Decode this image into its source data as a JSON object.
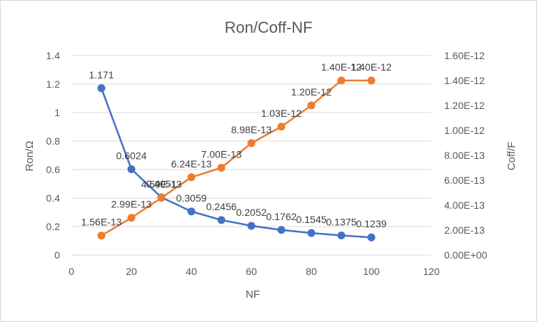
{
  "chart_data": {
    "type": "line",
    "title": "Ron/Coff-NF",
    "xlabel": "NF",
    "ylabel_left": "Ron/Ω",
    "ylabel_right": "Coff/F",
    "xlim": [
      0,
      120
    ],
    "ylim_left": [
      0,
      1.4
    ],
    "ylim_right": [
      0,
      1.6e-12
    ],
    "x_ticks": [
      "0",
      "20",
      "40",
      "60",
      "80",
      "100",
      "120"
    ],
    "y_left_ticks": [
      "0",
      "0.2",
      "0.4",
      "0.6",
      "0.8",
      "1",
      "1.2",
      "1.4"
    ],
    "y_right_ticks": [
      "0.00E+00",
      "2.00E-13",
      "4.00E-13",
      "6.00E-13",
      "8.00E-13",
      "1.00E-12",
      "1.20E-12",
      "1.40E-12",
      "1.60E-12"
    ],
    "grid": "horizontal",
    "legend": "none",
    "x": [
      10,
      20,
      30,
      40,
      50,
      60,
      70,
      80,
      90,
      100
    ],
    "series": [
      {
        "axis": "left",
        "color": "#4472c4",
        "values": [
          1.171,
          0.6024,
          0.4051,
          0.3059,
          0.2456,
          0.2052,
          0.1762,
          0.1545,
          0.1375,
          0.1239
        ],
        "labels": [
          "1.171",
          "0.6024",
          "0.4051",
          "0.3059",
          "0.2456",
          "0.2052",
          "0.1762",
          "0.1545",
          "0.1375",
          "0.1239"
        ]
      },
      {
        "axis": "right",
        "color": "#ed7d31",
        "values": [
          1.56e-13,
          2.99e-13,
          4.59e-13,
          6.24e-13,
          7e-13,
          8.98e-13,
          1.03e-12,
          1.2e-12,
          1.4e-12,
          1.4e-12
        ],
        "labels": [
          "1.56E-13",
          "2.99E-13",
          "4.59E-13",
          "6.24E-13",
          "7.00E-13",
          "8.98E-13",
          "1.03E-12",
          "1.20E-12",
          "1.40E-12",
          "1.40E-12"
        ]
      }
    ]
  }
}
